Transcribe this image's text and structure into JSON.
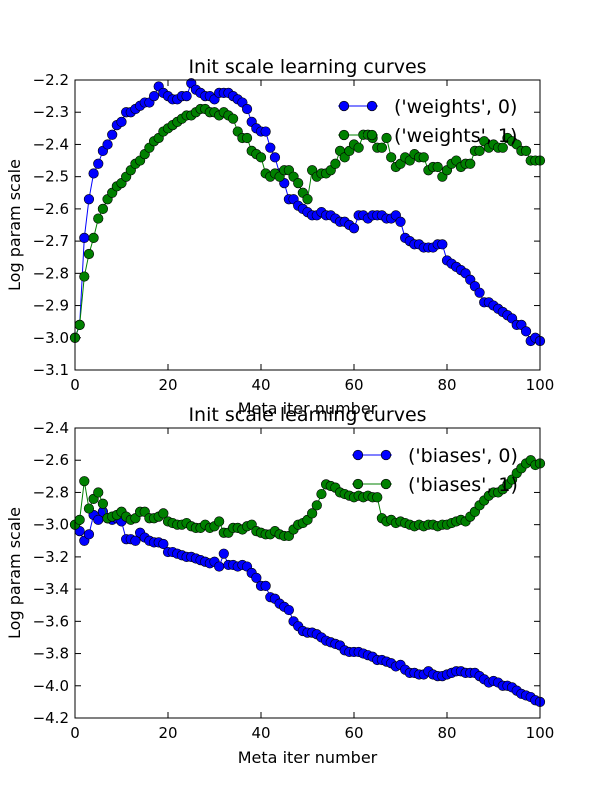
{
  "chart_data": [
    {
      "type": "line",
      "title": "Init scale learning curves",
      "xlabel": "Meta iter number",
      "ylabel": "Log param scale",
      "xlim": [
        0,
        100
      ],
      "ylim": [
        -3.1,
        -2.2
      ],
      "xticks": [
        "0",
        "20",
        "40",
        "60",
        "80",
        "100"
      ],
      "yticks": [
        "-3.1",
        "-3.0",
        "-2.9",
        "-2.8",
        "-2.7",
        "-2.6",
        "-2.5",
        "-2.4",
        "-2.3",
        "-2.2"
      ],
      "grid": false,
      "legend_position": "top-right",
      "series": [
        {
          "name": "('weights', 0)",
          "color": "#0000ff",
          "values": [
            -3.0,
            -2.96,
            -2.69,
            -2.57,
            -2.49,
            -2.46,
            -2.42,
            -2.4,
            -2.37,
            -2.34,
            -2.33,
            -2.3,
            -2.3,
            -2.29,
            -2.28,
            -2.27,
            -2.27,
            -2.25,
            -2.22,
            -2.24,
            -2.25,
            -2.26,
            -2.26,
            -2.25,
            -2.25,
            -2.21,
            -2.23,
            -2.24,
            -2.25,
            -2.25,
            -2.26,
            -2.24,
            -2.24,
            -2.24,
            -2.25,
            -2.26,
            -2.27,
            -2.29,
            -2.33,
            -2.35,
            -2.36,
            -2.36,
            -2.41,
            -2.44,
            -2.49,
            -2.52,
            -2.57,
            -2.57,
            -2.59,
            -2.6,
            -2.61,
            -2.62,
            -2.62,
            -2.61,
            -2.62,
            -2.62,
            -2.63,
            -2.64,
            -2.64,
            -2.65,
            -2.66,
            -2.62,
            -2.62,
            -2.63,
            -2.62,
            -2.62,
            -2.62,
            -2.63,
            -2.63,
            -2.62,
            -2.64,
            -2.69,
            -2.7,
            -2.71,
            -2.71,
            -2.72,
            -2.72,
            -2.72,
            -2.71,
            -2.71,
            -2.76,
            -2.77,
            -2.78,
            -2.79,
            -2.8,
            -2.82,
            -2.84,
            -2.86,
            -2.89,
            -2.89,
            -2.9,
            -2.91,
            -2.92,
            -2.93,
            -2.94,
            -2.96,
            -2.96,
            -2.98,
            -3.01,
            -3.0,
            -3.01
          ]
        },
        {
          "name": "('weights', 1)",
          "color": "#008000",
          "values": [
            -3.0,
            -2.96,
            -2.81,
            -2.74,
            -2.69,
            -2.63,
            -2.6,
            -2.57,
            -2.55,
            -2.53,
            -2.52,
            -2.5,
            -2.48,
            -2.46,
            -2.45,
            -2.43,
            -2.41,
            -2.39,
            -2.38,
            -2.36,
            -2.35,
            -2.34,
            -2.33,
            -2.32,
            -2.31,
            -2.31,
            -2.3,
            -2.29,
            -2.29,
            -2.3,
            -2.3,
            -2.31,
            -2.3,
            -2.31,
            -2.32,
            -2.36,
            -2.38,
            -2.38,
            -2.42,
            -2.43,
            -2.44,
            -2.49,
            -2.5,
            -2.49,
            -2.5,
            -2.48,
            -2.48,
            -2.5,
            -2.52,
            -2.55,
            -2.57,
            -2.48,
            -2.5,
            -2.49,
            -2.49,
            -2.48,
            -2.46,
            -2.42,
            -2.44,
            -2.42,
            -2.4,
            -2.41,
            -2.37,
            -2.37,
            -2.38,
            -2.41,
            -2.41,
            -2.38,
            -2.44,
            -2.47,
            -2.46,
            -2.44,
            -2.45,
            -2.43,
            -2.44,
            -2.44,
            -2.48,
            -2.47,
            -2.47,
            -2.5,
            -2.48,
            -2.46,
            -2.45,
            -2.47,
            -2.46,
            -2.46,
            -2.42,
            -2.42,
            -2.39,
            -2.41,
            -2.4,
            -2.41,
            -2.41,
            -2.38,
            -2.39,
            -2.4,
            -2.42,
            -2.42,
            -2.45,
            -2.45,
            -2.45
          ]
        }
      ]
    },
    {
      "type": "line",
      "title": "Init scale learning curves",
      "xlabel": "Meta iter number",
      "ylabel": "Log param scale",
      "xlim": [
        0,
        100
      ],
      "ylim": [
        -4.2,
        -2.4
      ],
      "xticks": [
        "0",
        "20",
        "40",
        "60",
        "80",
        "100"
      ],
      "yticks": [
        "-4.2",
        "-4.0",
        "-3.8",
        "-3.6",
        "-3.4",
        "-3.2",
        "-3.0",
        "-2.8",
        "-2.6",
        "-2.4"
      ],
      "grid": false,
      "legend_position": "top-right",
      "series": [
        {
          "name": "('biases', 0)",
          "color": "#0000ff",
          "values": [
            -3.0,
            -3.04,
            -3.1,
            -3.06,
            -2.94,
            -2.97,
            -2.92,
            -2.96,
            -2.97,
            -2.96,
            -2.98,
            -3.09,
            -3.09,
            -3.1,
            -3.05,
            -3.08,
            -3.1,
            -3.11,
            -3.11,
            -3.12,
            -3.17,
            -3.17,
            -3.18,
            -3.19,
            -3.2,
            -3.2,
            -3.21,
            -3.22,
            -3.23,
            -3.24,
            -3.23,
            -3.26,
            -3.18,
            -3.25,
            -3.25,
            -3.26,
            -3.25,
            -3.26,
            -3.3,
            -3.33,
            -3.38,
            -3.38,
            -3.45,
            -3.46,
            -3.49,
            -3.51,
            -3.53,
            -3.6,
            -3.63,
            -3.66,
            -3.67,
            -3.67,
            -3.68,
            -3.7,
            -3.72,
            -3.73,
            -3.74,
            -3.75,
            -3.78,
            -3.79,
            -3.79,
            -3.79,
            -3.8,
            -3.81,
            -3.82,
            -3.84,
            -3.84,
            -3.85,
            -3.86,
            -3.88,
            -3.87,
            -3.9,
            -3.92,
            -3.92,
            -3.93,
            -3.93,
            -3.91,
            -3.93,
            -3.94,
            -3.94,
            -3.93,
            -3.92,
            -3.91,
            -3.91,
            -3.92,
            -3.92,
            -3.92,
            -3.94,
            -3.96,
            -3.98,
            -3.97,
            -3.98,
            -4.0,
            -4.0,
            -4.01,
            -4.03,
            -4.05,
            -4.06,
            -4.07,
            -4.09,
            -4.1
          ]
        },
        {
          "name": "('biases', 1)",
          "color": "#008000",
          "values": [
            -3.0,
            -2.97,
            -2.73,
            -2.9,
            -2.84,
            -2.8,
            -2.87,
            -2.96,
            -2.95,
            -2.94,
            -2.92,
            -2.95,
            -2.97,
            -2.96,
            -2.92,
            -2.92,
            -2.96,
            -2.96,
            -2.95,
            -2.93,
            -2.98,
            -2.99,
            -3.0,
            -3.0,
            -2.99,
            -3.01,
            -3.02,
            -3.02,
            -3.0,
            -3.02,
            -3.01,
            -2.98,
            -3.05,
            -3.05,
            -3.02,
            -3.02,
            -3.03,
            -3.01,
            -3.0,
            -3.04,
            -3.05,
            -3.06,
            -3.06,
            -3.04,
            -3.06,
            -3.07,
            -3.07,
            -3.03,
            -3.0,
            -2.99,
            -2.97,
            -2.93,
            -2.88,
            -2.81,
            -2.75,
            -2.76,
            -2.77,
            -2.8,
            -2.81,
            -2.82,
            -2.83,
            -2.82,
            -2.83,
            -2.82,
            -2.83,
            -2.83,
            -2.96,
            -2.98,
            -2.97,
            -2.99,
            -2.98,
            -2.99,
            -3.0,
            -3.01,
            -3.0,
            -3.01,
            -3.0,
            -3.0,
            -3.01,
            -3.0,
            -3.0,
            -2.99,
            -2.98,
            -2.97,
            -2.98,
            -2.95,
            -2.92,
            -2.88,
            -2.85,
            -2.82,
            -2.8,
            -2.8,
            -2.78,
            -2.75,
            -2.72,
            -2.68,
            -2.65,
            -2.62,
            -2.6,
            -2.63,
            -2.62
          ]
        }
      ]
    }
  ]
}
